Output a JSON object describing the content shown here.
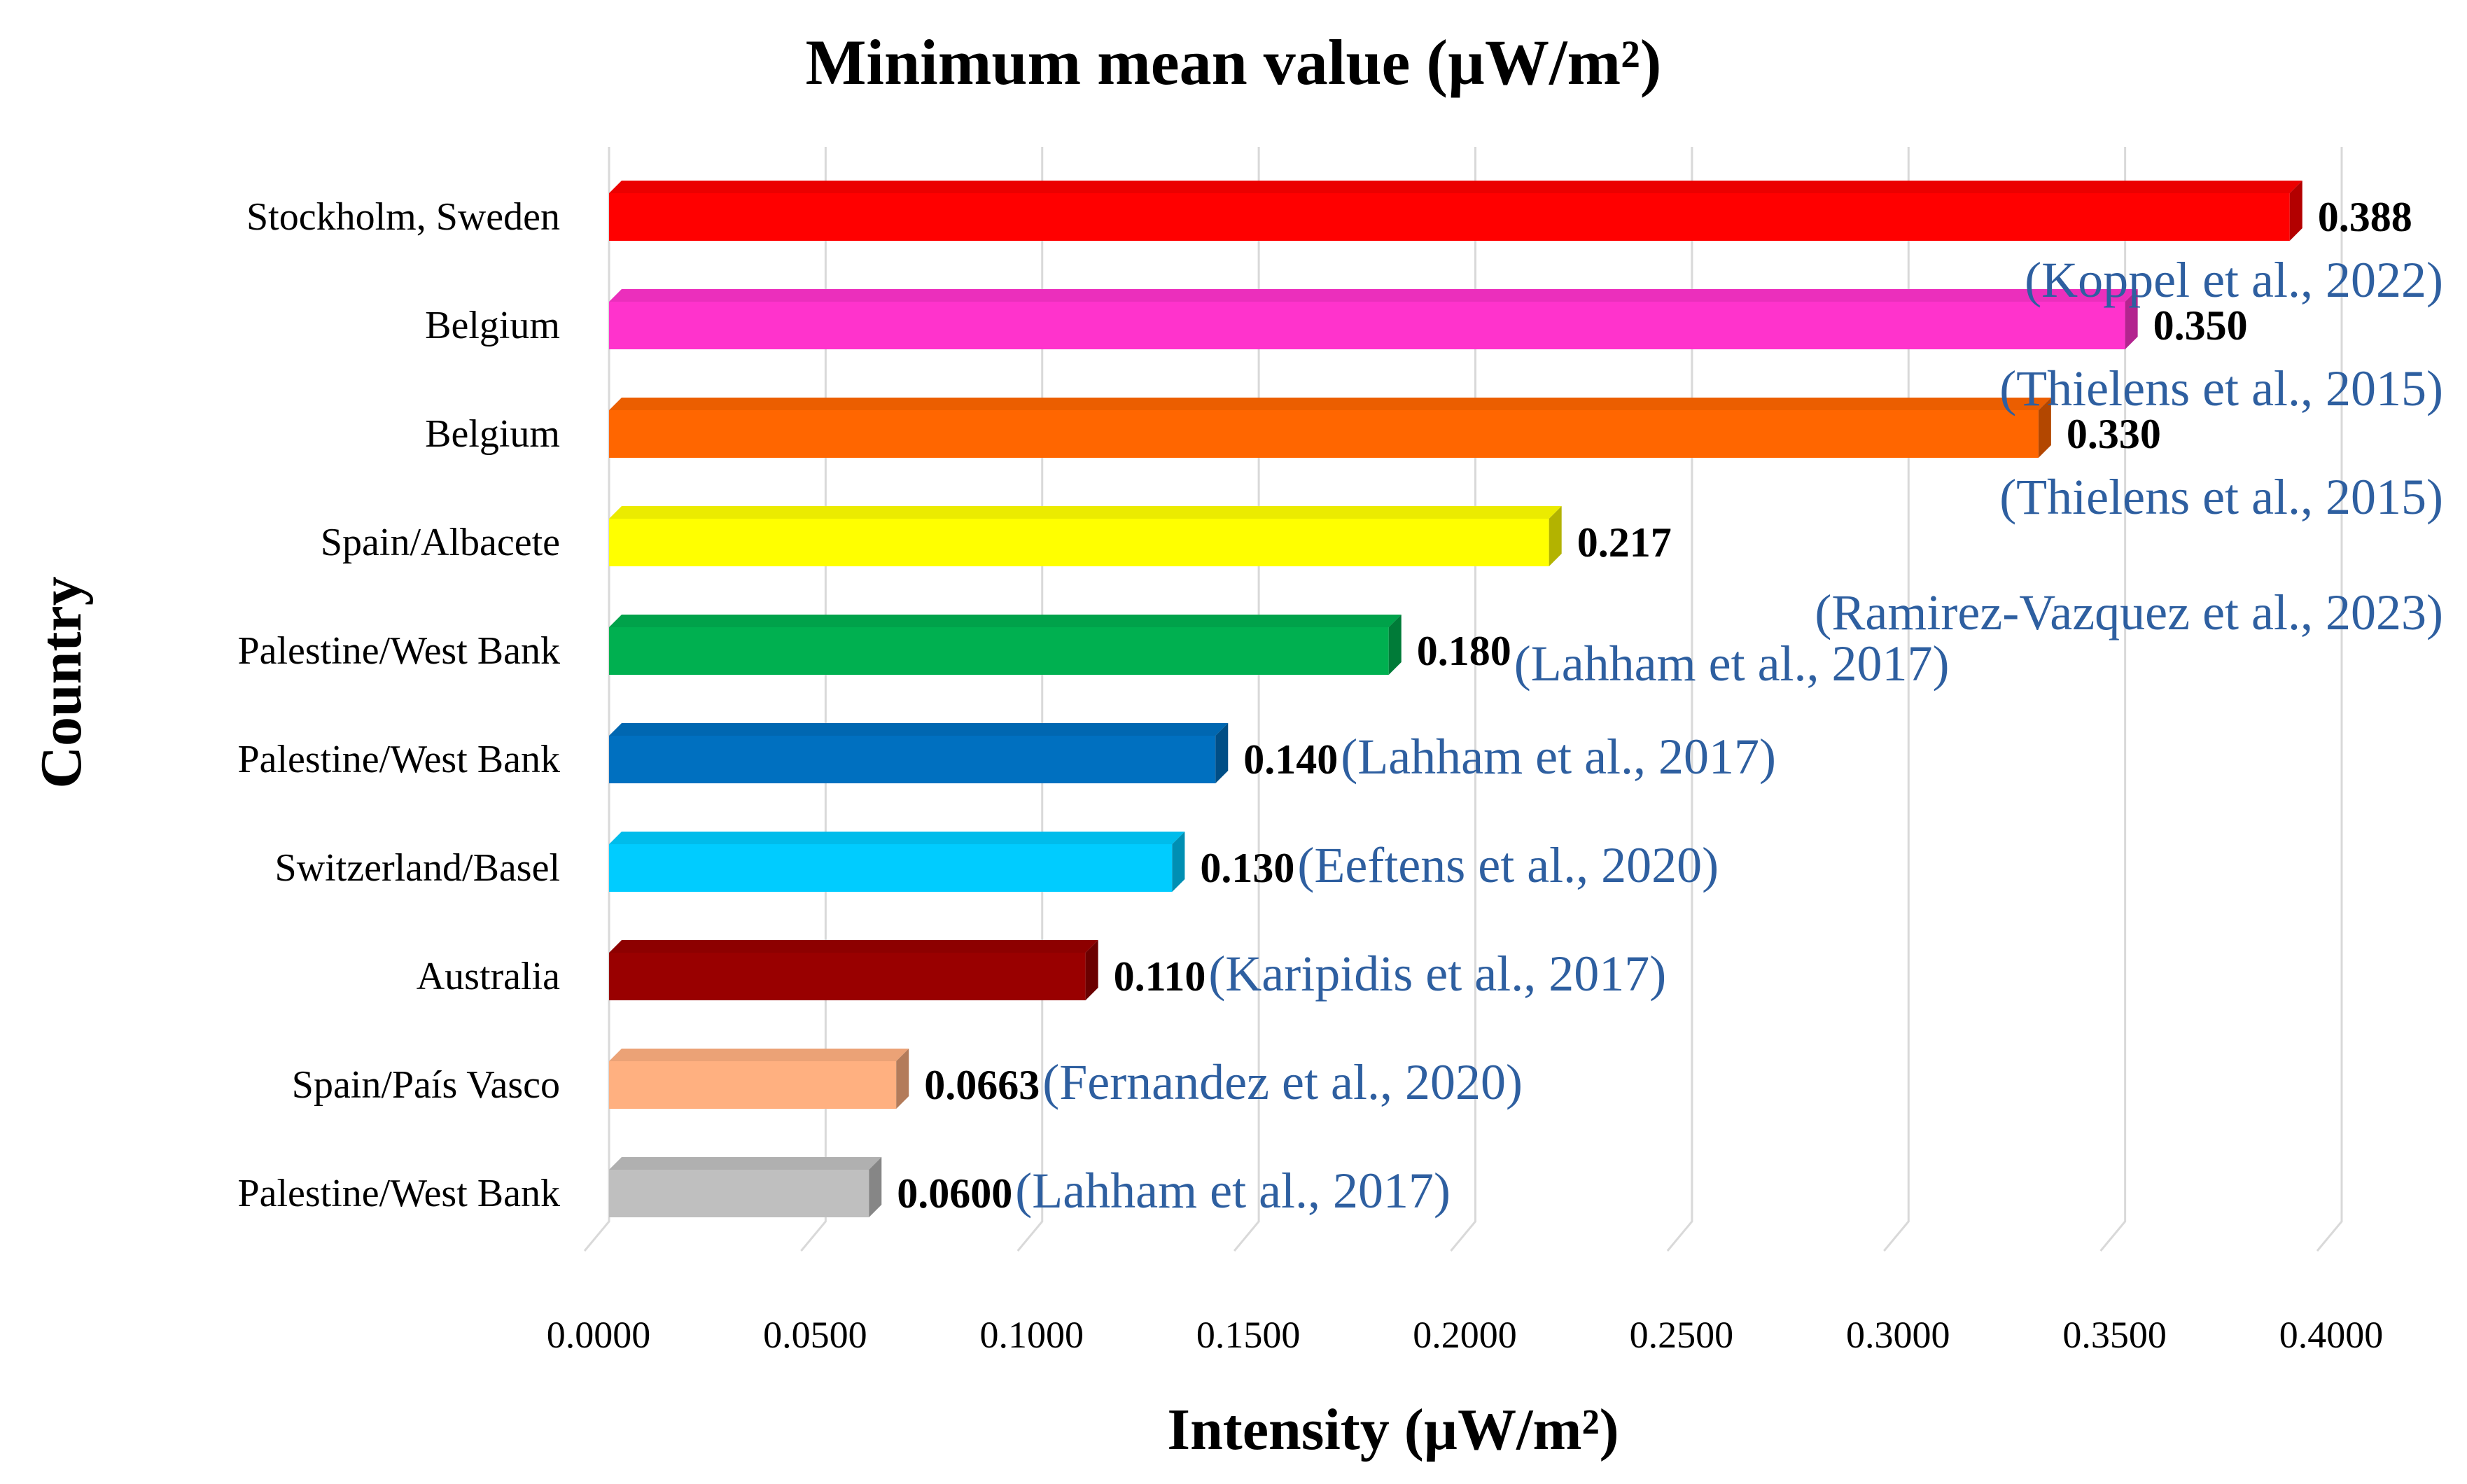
{
  "chart_data": {
    "type": "bar",
    "orientation": "horizontal",
    "title": "Minimum mean value (µW/m²)",
    "xlabel": "Intensity (µW/m²)",
    "ylabel": "Country",
    "xlim": [
      0,
      0.4
    ],
    "xticks": [
      0,
      0.05,
      0.1,
      0.15,
      0.2,
      0.25,
      0.3,
      0.35,
      0.4
    ],
    "xtick_labels": [
      "0.0000",
      "0.0500",
      "0.1000",
      "0.1500",
      "0.2000",
      "0.2500",
      "0.3000",
      "0.3500",
      "0.4000"
    ],
    "grid": "vertical",
    "bars": [
      {
        "category": "Stockholm, Sweden",
        "value": 0.388,
        "label": "0.388",
        "source": "(Koppel et al., 2022)",
        "color": "#ff0000"
      },
      {
        "category": "Belgium",
        "value": 0.35,
        "label": "0.350",
        "source": "(Thielens et al., 2015)",
        "color": "#ff33cc"
      },
      {
        "category": "Belgium",
        "value": 0.33,
        "label": "0.330",
        "source": "(Thielens et al., 2015)",
        "color": "#ff6600"
      },
      {
        "category": "Spain/Albacete",
        "value": 0.217,
        "label": "0.217",
        "source": "(Ramirez-Vazquez  et al., 2023)",
        "color": "#ffff00"
      },
      {
        "category": "Palestine/West Bank",
        "value": 0.18,
        "label": "0.180",
        "source": "(Lahham  et al., 2017)",
        "color": "#00b050"
      },
      {
        "category": "Palestine/West Bank",
        "value": 0.14,
        "label": "0.140",
        "source": "(Lahham  et al., 2017)",
        "color": "#0070c0"
      },
      {
        "category": "Switzerland/Basel",
        "value": 0.13,
        "label": "0.130",
        "source": "(Eeftens et al., 2020)",
        "color": "#00ccff"
      },
      {
        "category": "Australia",
        "value": 0.11,
        "label": "0.110",
        "source": "(Karipidis et al., 2017)",
        "color": "#990000"
      },
      {
        "category": "Spain/País Vasco",
        "value": 0.0663,
        "label": "0.0663",
        "source": "(Fernandez  et al., 2020)",
        "color": "#ffb080"
      },
      {
        "category": "Palestine/West Bank",
        "value": 0.06,
        "label": "0.0600",
        "source": "(Lahham  et al., 2017)",
        "color": "#bfbfbf"
      }
    ],
    "colors": {
      "value_label": "#000000",
      "source_label": "#2e5fa0",
      "grid": "#d9d9d9"
    }
  }
}
